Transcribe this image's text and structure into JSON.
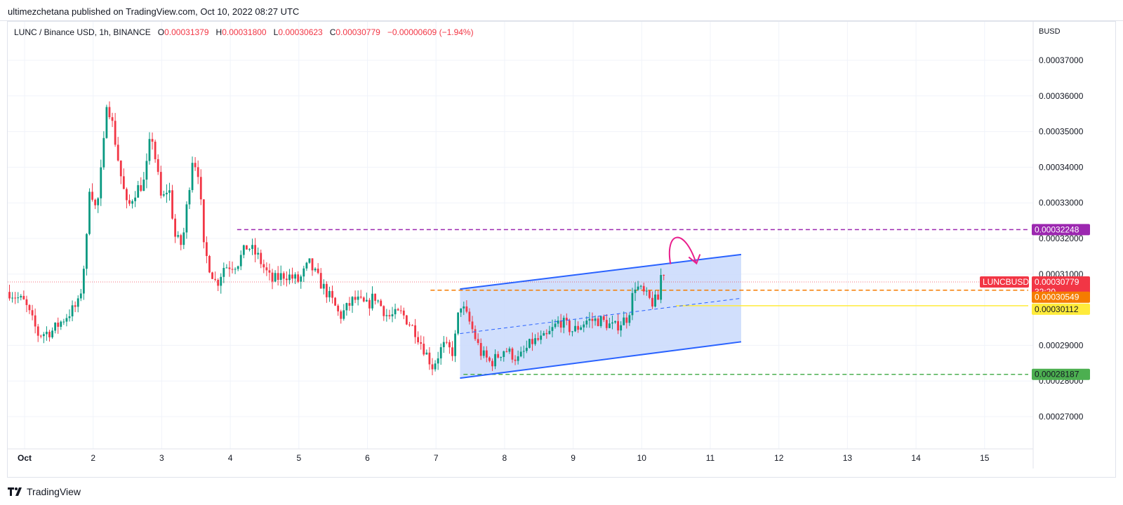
{
  "publisher": {
    "text": "ultimezchetana published on TradingView.com, Oct 10, 2022 08:27 UTC"
  },
  "legend": {
    "symbol": "LUNC / Binance USD, 1h, BINANCE",
    "open_label": "O",
    "open": "0.00031379",
    "high_label": "H",
    "high": "0.00031800",
    "low_label": "L",
    "low": "0.00030623",
    "close_label": "C",
    "close": "0.00030779",
    "change": "−0.00000609 (−1.94%)"
  },
  "footer": {
    "brand": "TradingView",
    "logo_icon": "tradingview-logo-icon"
  },
  "colors": {
    "up": "#089981",
    "down": "#f23645",
    "grid": "#f0f3fa",
    "channel": "#2962ff",
    "channel_fill": "#c9d9fb",
    "resistance": "#9c27b0",
    "orange": "#f57c00",
    "yellow": "#ffeb3b",
    "support": "#4caf50",
    "price": "#f23645"
  },
  "chart_data": {
    "type": "candlestick",
    "currency": "BUSD",
    "ylim": [
      0.00026,
      0.00038
    ],
    "y_ticks": [
      "0.00037000",
      "0.00036000",
      "0.00035000",
      "0.00034000",
      "0.00033000",
      "0.00032000",
      "0.00031000",
      "0.00029000",
      "0.00028000",
      "0.00027000"
    ],
    "y_tick_values": [
      0.00037,
      0.00036,
      0.00035,
      0.00034,
      0.00033,
      0.00032,
      0.00031,
      0.00029,
      0.00028,
      0.00027
    ],
    "x_range_days": [
      0.78,
      16.4
    ],
    "x_ticks": [
      {
        "label": "Oct",
        "day": 1
      },
      {
        "label": "2",
        "day": 2
      },
      {
        "label": "3",
        "day": 3
      },
      {
        "label": "4",
        "day": 4
      },
      {
        "label": "5",
        "day": 5
      },
      {
        "label": "6",
        "day": 6
      },
      {
        "label": "7",
        "day": 7
      },
      {
        "label": "8",
        "day": 8
      },
      {
        "label": "9",
        "day": 9
      },
      {
        "label": "10",
        "day": 10
      },
      {
        "label": "11",
        "day": 11
      },
      {
        "label": "12",
        "day": 12
      },
      {
        "label": "13",
        "day": 13
      },
      {
        "label": "14",
        "day": 14
      },
      {
        "label": "15",
        "day": 15
      }
    ],
    "interval_hours": 1,
    "first_candle_day": 0.78,
    "close_path": [
      [
        0.78,
        0.000305
      ],
      [
        1.0,
        0.000302
      ],
      [
        1.2,
        0.000293
      ],
      [
        1.4,
        0.000294
      ],
      [
        1.6,
        0.000298
      ],
      [
        1.8,
        0.000302
      ],
      [
        1.9,
        0.000318
      ],
      [
        1.95,
        0.000336
      ],
      [
        2.05,
        0.000327
      ],
      [
        2.15,
        0.000345
      ],
      [
        2.2,
        0.00036
      ],
      [
        2.3,
        0.00035
      ],
      [
        2.4,
        0.000338
      ],
      [
        2.5,
        0.000328
      ],
      [
        2.6,
        0.000333
      ],
      [
        2.75,
        0.000336
      ],
      [
        2.85,
        0.00035
      ],
      [
        3.0,
        0.00033
      ],
      [
        3.1,
        0.000335
      ],
      [
        3.2,
        0.00032
      ],
      [
        3.3,
        0.000318
      ],
      [
        3.45,
        0.000343
      ],
      [
        3.55,
        0.000338
      ],
      [
        3.6,
        0.000318
      ],
      [
        3.7,
        0.000312
      ],
      [
        3.8,
        0.000307
      ],
      [
        3.9,
        0.000312
      ],
      [
        4.1,
        0.000313
      ],
      [
        4.25,
        0.000318
      ],
      [
        4.4,
        0.000315
      ],
      [
        4.6,
        0.000308
      ],
      [
        4.8,
        0.00031
      ],
      [
        5.0,
        0.000308
      ],
      [
        5.15,
        0.000313
      ],
      [
        5.3,
        0.000308
      ],
      [
        5.5,
        0.000302
      ],
      [
        5.6,
        0.000298
      ],
      [
        5.8,
        0.000303
      ],
      [
        6.0,
        0.000301
      ],
      [
        6.1,
        0.000304
      ],
      [
        6.3,
        0.000298
      ],
      [
        6.5,
        0.000299
      ],
      [
        6.7,
        0.000294
      ],
      [
        6.85,
        0.000288
      ],
      [
        6.95,
        0.000284
      ],
      [
        7.1,
        0.00029
      ],
      [
        7.25,
        0.000288
      ],
      [
        7.35,
        0.000302
      ],
      [
        7.5,
        0.000296
      ],
      [
        7.65,
        0.000288
      ],
      [
        7.8,
        0.000285
      ],
      [
        8.0,
        0.000289
      ],
      [
        8.2,
        0.000286
      ],
      [
        8.4,
        0.000291
      ],
      [
        8.6,
        0.000292
      ],
      [
        8.8,
        0.000297
      ],
      [
        9.0,
        0.000294
      ],
      [
        9.2,
        0.000297
      ],
      [
        9.4,
        0.000297
      ],
      [
        9.6,
        0.000295
      ],
      [
        9.8,
        0.000298
      ],
      [
        9.9,
        0.000307
      ],
      [
        10.05,
        0.000304
      ],
      [
        10.15,
        0.000302
      ],
      [
        10.25,
        0.000303
      ],
      [
        10.3,
        0.000314
      ],
      [
        10.34,
        0.000308
      ]
    ],
    "channel": {
      "upper": [
        [
          7.35,
          0.0003058
        ],
        [
          11.45,
          0.0003155
        ]
      ],
      "lower": [
        [
          7.35,
          0.0002808
        ],
        [
          11.45,
          0.000291
        ]
      ],
      "mid": [
        [
          7.35,
          0.0002933
        ],
        [
          11.45,
          0.0003032
        ]
      ]
    },
    "levels": [
      {
        "price": "0.00032248",
        "value": 0.00032248,
        "color": "#9c27b0",
        "style": "dashed",
        "from_day": 4.1
      },
      {
        "price": "0.00030549",
        "value": 0.00030549,
        "color": "#f57c00",
        "style": "dashed",
        "from_day": 6.92
      },
      {
        "price": "0.00030112",
        "value": 0.00030112,
        "color": "#ffeb3b",
        "style": "solid",
        "from_day": 10.5
      },
      {
        "price": "0.00028187",
        "value": 0.00028187,
        "color": "#4caf50",
        "style": "dashed",
        "from_day": 7.4
      }
    ],
    "current_price": {
      "symbol": "LUNCBUSD",
      "price": "0.00030779",
      "value": 0.00030779,
      "countdown": "32:20"
    },
    "annotation": "curved-arrow"
  }
}
